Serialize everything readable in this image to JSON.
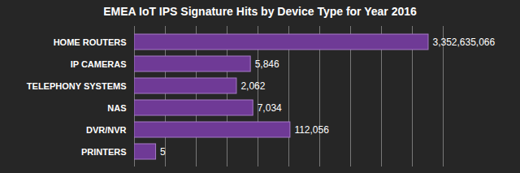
{
  "chart_data": {
    "type": "bar",
    "title": "EMEA IoT IPS Signature Hits by Device Type for Year 2016",
    "categories": [
      "HOME ROUTERS",
      "IP CAMERAS",
      "TELEPHONY SYSTEMS",
      "NAS",
      "DVR/NVR",
      "PRINTERS"
    ],
    "values": [
      3352635066,
      5846,
      2062,
      7034,
      112056,
      5
    ],
    "value_labels": [
      "3,352,635,066",
      "5,846",
      "2,062",
      "7,034",
      "112,056",
      "5"
    ],
    "color": "#6f3a96",
    "orientation": "horizontal",
    "log": "x",
    "xlim": [
      1,
      10000000000
    ],
    "xticks": [
      1,
      10,
      100,
      1000,
      10000,
      100000,
      1000000,
      10000000,
      100000000,
      1000000000,
      10000000000
    ],
    "grid": true,
    "data_labels": true,
    "tick_labels": "y"
  }
}
